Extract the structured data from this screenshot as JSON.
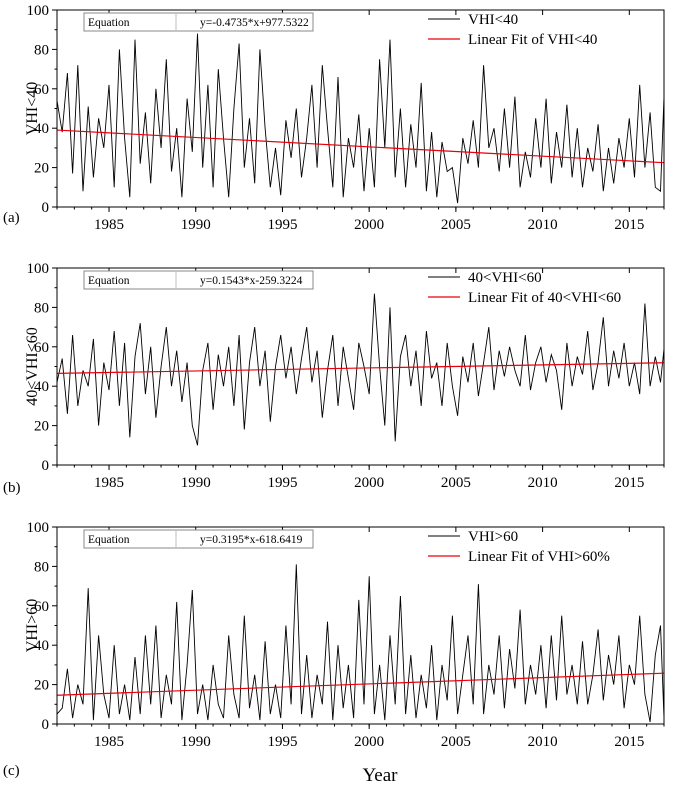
{
  "figure": {
    "xlabel": "Year"
  },
  "chart_data": [
    {
      "type": "line",
      "panel_label": "(a)",
      "ylabel": "VHI<40",
      "xlim": [
        1982,
        2017
      ],
      "ylim": [
        0,
        100
      ],
      "x_ticks": [
        1985,
        1990,
        1995,
        2000,
        2005,
        2010,
        2015
      ],
      "y_ticks": [
        0,
        20,
        40,
        60,
        80,
        100
      ],
      "equation_label": "Equation",
      "equation": "y=-0.4735*x+977.5322",
      "series": [
        {
          "name": "VHI<40",
          "color": "#000000",
          "x": [
            1982.0,
            1982.3,
            1982.6,
            1982.9,
            1983.2,
            1983.5,
            1983.8,
            1984.1,
            1984.4,
            1984.7,
            1985.0,
            1985.3,
            1985.6,
            1985.9,
            1986.2,
            1986.5,
            1986.8,
            1987.1,
            1987.4,
            1987.7,
            1988.0,
            1988.3,
            1988.6,
            1988.9,
            1989.2,
            1989.5,
            1989.8,
            1990.1,
            1990.4,
            1990.7,
            1991.0,
            1991.3,
            1991.6,
            1991.9,
            1992.2,
            1992.5,
            1992.8,
            1993.1,
            1993.4,
            1993.7,
            1994.0,
            1994.3,
            1994.6,
            1994.9,
            1995.2,
            1995.5,
            1995.8,
            1996.1,
            1996.4,
            1996.7,
            1997.0,
            1997.3,
            1997.6,
            1997.9,
            1998.2,
            1998.5,
            1998.8,
            1999.1,
            1999.4,
            1999.7,
            2000.0,
            2000.3,
            2000.6,
            2000.9,
            2001.2,
            2001.5,
            2001.8,
            2002.1,
            2002.4,
            2002.7,
            2003.0,
            2003.3,
            2003.6,
            2003.9,
            2004.2,
            2004.5,
            2004.8,
            2005.1,
            2005.4,
            2005.7,
            2006.0,
            2006.3,
            2006.6,
            2006.9,
            2007.2,
            2007.5,
            2007.8,
            2008.1,
            2008.4,
            2008.7,
            2009.0,
            2009.3,
            2009.6,
            2009.9,
            2010.2,
            2010.5,
            2010.8,
            2011.1,
            2011.4,
            2011.7,
            2012.0,
            2012.3,
            2012.6,
            2012.9,
            2013.2,
            2013.5,
            2013.8,
            2014.1,
            2014.4,
            2014.7,
            2015.0,
            2015.3,
            2015.6,
            2015.9,
            2016.2,
            2016.5,
            2016.8,
            2017.0
          ],
          "y": [
            54,
            38,
            68,
            17,
            72,
            8,
            51,
            15,
            45,
            30,
            62,
            10,
            80,
            35,
            5,
            85,
            22,
            48,
            12,
            60,
            30,
            75,
            18,
            40,
            5,
            55,
            28,
            88,
            20,
            62,
            10,
            70,
            35,
            5,
            50,
            83,
            20,
            45,
            12,
            80,
            40,
            10,
            30,
            6,
            44,
            25,
            50,
            15,
            35,
            62,
            20,
            72,
            40,
            10,
            66,
            5,
            35,
            20,
            47,
            8,
            40,
            10,
            75,
            30,
            85,
            15,
            50,
            10,
            42,
            20,
            63,
            8,
            38,
            5,
            33,
            18,
            20,
            2,
            35,
            22,
            44,
            20,
            72,
            30,
            40,
            18,
            50,
            20,
            56,
            10,
            28,
            15,
            45,
            20,
            55,
            12,
            38,
            20,
            52,
            15,
            40,
            10,
            30,
            18,
            42,
            8,
            30,
            12,
            35,
            20,
            45,
            15,
            62,
            20,
            48,
            10,
            8,
            56
          ]
        },
        {
          "name": "Linear Fit of VHI<40",
          "color": "#e8000b",
          "type": "fit",
          "slope": -0.4735,
          "intercept": 977.5322
        }
      ]
    },
    {
      "type": "line",
      "panel_label": "(b)",
      "ylabel": "40<VHI<60",
      "xlim": [
        1982,
        2017
      ],
      "ylim": [
        0,
        100
      ],
      "x_ticks": [
        1985,
        1990,
        1995,
        2000,
        2005,
        2010,
        2015
      ],
      "y_ticks": [
        0,
        20,
        40,
        60,
        80,
        100
      ],
      "equation_label": "Equation",
      "equation": "y=0.1543*x-259.3224",
      "series": [
        {
          "name": "40<VHI<60",
          "color": "#000000",
          "x": [
            1982.0,
            1982.3,
            1982.6,
            1982.9,
            1983.2,
            1983.5,
            1983.8,
            1984.1,
            1984.4,
            1984.7,
            1985.0,
            1985.3,
            1985.6,
            1985.9,
            1986.2,
            1986.5,
            1986.8,
            1987.1,
            1987.4,
            1987.7,
            1988.0,
            1988.3,
            1988.6,
            1988.9,
            1989.2,
            1989.5,
            1989.8,
            1990.1,
            1990.4,
            1990.7,
            1991.0,
            1991.3,
            1991.6,
            1991.9,
            1992.2,
            1992.5,
            1992.8,
            1993.1,
            1993.4,
            1993.7,
            1994.0,
            1994.3,
            1994.6,
            1994.9,
            1995.2,
            1995.5,
            1995.8,
            1996.1,
            1996.4,
            1996.7,
            1997.0,
            1997.3,
            1997.6,
            1997.9,
            1998.2,
            1998.5,
            1998.8,
            1999.1,
            1999.4,
            1999.7,
            2000.0,
            2000.3,
            2000.6,
            2000.9,
            2001.2,
            2001.5,
            2001.8,
            2002.1,
            2002.4,
            2002.7,
            2003.0,
            2003.3,
            2003.6,
            2003.9,
            2004.2,
            2004.5,
            2004.8,
            2005.1,
            2005.4,
            2005.7,
            2006.0,
            2006.3,
            2006.6,
            2006.9,
            2007.2,
            2007.5,
            2007.8,
            2008.1,
            2008.4,
            2008.7,
            2009.0,
            2009.3,
            2009.6,
            2009.9,
            2010.2,
            2010.5,
            2010.8,
            2011.1,
            2011.4,
            2011.7,
            2012.0,
            2012.3,
            2012.6,
            2012.9,
            2013.2,
            2013.5,
            2013.8,
            2014.1,
            2014.4,
            2014.7,
            2015.0,
            2015.3,
            2015.6,
            2015.9,
            2016.2,
            2016.5,
            2016.8,
            2017.0
          ],
          "y": [
            42,
            54,
            26,
            66,
            30,
            48,
            40,
            64,
            20,
            52,
            38,
            68,
            30,
            62,
            14,
            55,
            72,
            36,
            60,
            24,
            50,
            70,
            40,
            58,
            32,
            52,
            20,
            10,
            48,
            62,
            28,
            56,
            40,
            60,
            30,
            66,
            18,
            52,
            70,
            40,
            58,
            22,
            50,
            66,
            44,
            60,
            36,
            54,
            70,
            42,
            58,
            24,
            48,
            66,
            30,
            60,
            44,
            28,
            62,
            50,
            36,
            87,
            50,
            20,
            80,
            12,
            55,
            66,
            40,
            58,
            30,
            68,
            44,
            52,
            30,
            62,
            40,
            25,
            55,
            42,
            62,
            35,
            52,
            70,
            38,
            58,
            45,
            60,
            48,
            40,
            66,
            38,
            52,
            60,
            42,
            56,
            48,
            28,
            62,
            40,
            55,
            46,
            68,
            38,
            52,
            75,
            40,
            58,
            44,
            62,
            40,
            52,
            36,
            82,
            40,
            55,
            42,
            59
          ]
        },
        {
          "name": "Linear Fit of 40<VHI<60",
          "color": "#e8000b",
          "type": "fit",
          "slope": 0.1543,
          "intercept": -259.3224
        }
      ]
    },
    {
      "type": "line",
      "panel_label": "(c)",
      "ylabel": "VHI>60",
      "xlim": [
        1982,
        2017
      ],
      "ylim": [
        0,
        100
      ],
      "x_ticks": [
        1985,
        1990,
        1995,
        2000,
        2005,
        2010,
        2015
      ],
      "y_ticks": [
        0,
        20,
        40,
        60,
        80,
        100
      ],
      "equation_label": "Equation",
      "equation": "y=0.3195*x-618.6419",
      "series": [
        {
          "name": "VHI>60",
          "color": "#000000",
          "x": [
            1982.0,
            1982.3,
            1982.6,
            1982.9,
            1983.2,
            1983.5,
            1983.8,
            1984.1,
            1984.4,
            1984.7,
            1985.0,
            1985.3,
            1985.6,
            1985.9,
            1986.2,
            1986.5,
            1986.8,
            1987.1,
            1987.4,
            1987.7,
            1988.0,
            1988.3,
            1988.6,
            1988.9,
            1989.2,
            1989.5,
            1989.8,
            1990.1,
            1990.4,
            1990.7,
            1991.0,
            1991.3,
            1991.6,
            1991.9,
            1992.2,
            1992.5,
            1992.8,
            1993.1,
            1993.4,
            1993.7,
            1994.0,
            1994.3,
            1994.6,
            1994.9,
            1995.2,
            1995.5,
            1995.8,
            1996.1,
            1996.4,
            1996.7,
            1997.0,
            1997.3,
            1997.6,
            1997.9,
            1998.2,
            1998.5,
            1998.8,
            1999.1,
            1999.4,
            1999.7,
            2000.0,
            2000.3,
            2000.6,
            2000.9,
            2001.2,
            2001.5,
            2001.8,
            2002.1,
            2002.4,
            2002.7,
            2003.0,
            2003.3,
            2003.6,
            2003.9,
            2004.2,
            2004.5,
            2004.8,
            2005.1,
            2005.4,
            2005.7,
            2006.0,
            2006.3,
            2006.6,
            2006.9,
            2007.2,
            2007.5,
            2007.8,
            2008.1,
            2008.4,
            2008.7,
            2009.0,
            2009.3,
            2009.6,
            2009.9,
            2010.2,
            2010.5,
            2010.8,
            2011.1,
            2011.4,
            2011.7,
            2012.0,
            2012.3,
            2012.6,
            2012.9,
            2013.2,
            2013.5,
            2013.8,
            2014.1,
            2014.4,
            2014.7,
            2015.0,
            2015.3,
            2015.6,
            2015.9,
            2016.2,
            2016.5,
            2016.8,
            2017.0
          ],
          "y": [
            5,
            8,
            28,
            3,
            20,
            10,
            69,
            2,
            45,
            15,
            3,
            40,
            5,
            20,
            2,
            34,
            5,
            45,
            10,
            50,
            3,
            25,
            10,
            62,
            2,
            30,
            68,
            5,
            20,
            2,
            30,
            10,
            3,
            45,
            15,
            3,
            55,
            8,
            25,
            2,
            42,
            5,
            20,
            3,
            50,
            10,
            81,
            5,
            35,
            3,
            25,
            10,
            52,
            2,
            40,
            8,
            30,
            3,
            63,
            10,
            75,
            5,
            30,
            2,
            45,
            10,
            65,
            5,
            35,
            3,
            25,
            8,
            40,
            2,
            30,
            12,
            55,
            5,
            25,
            45,
            10,
            71,
            5,
            30,
            15,
            45,
            8,
            38,
            18,
            58,
            10,
            30,
            15,
            40,
            8,
            45,
            12,
            55,
            15,
            30,
            10,
            42,
            10,
            25,
            48,
            12,
            35,
            20,
            45,
            8,
            30,
            20,
            55,
            15,
            1,
            35,
            50,
            3
          ]
        },
        {
          "name": "Linear Fit of VHI>60%",
          "color": "#e8000b",
          "type": "fit",
          "slope": 0.3195,
          "intercept": -618.6419
        }
      ]
    }
  ]
}
